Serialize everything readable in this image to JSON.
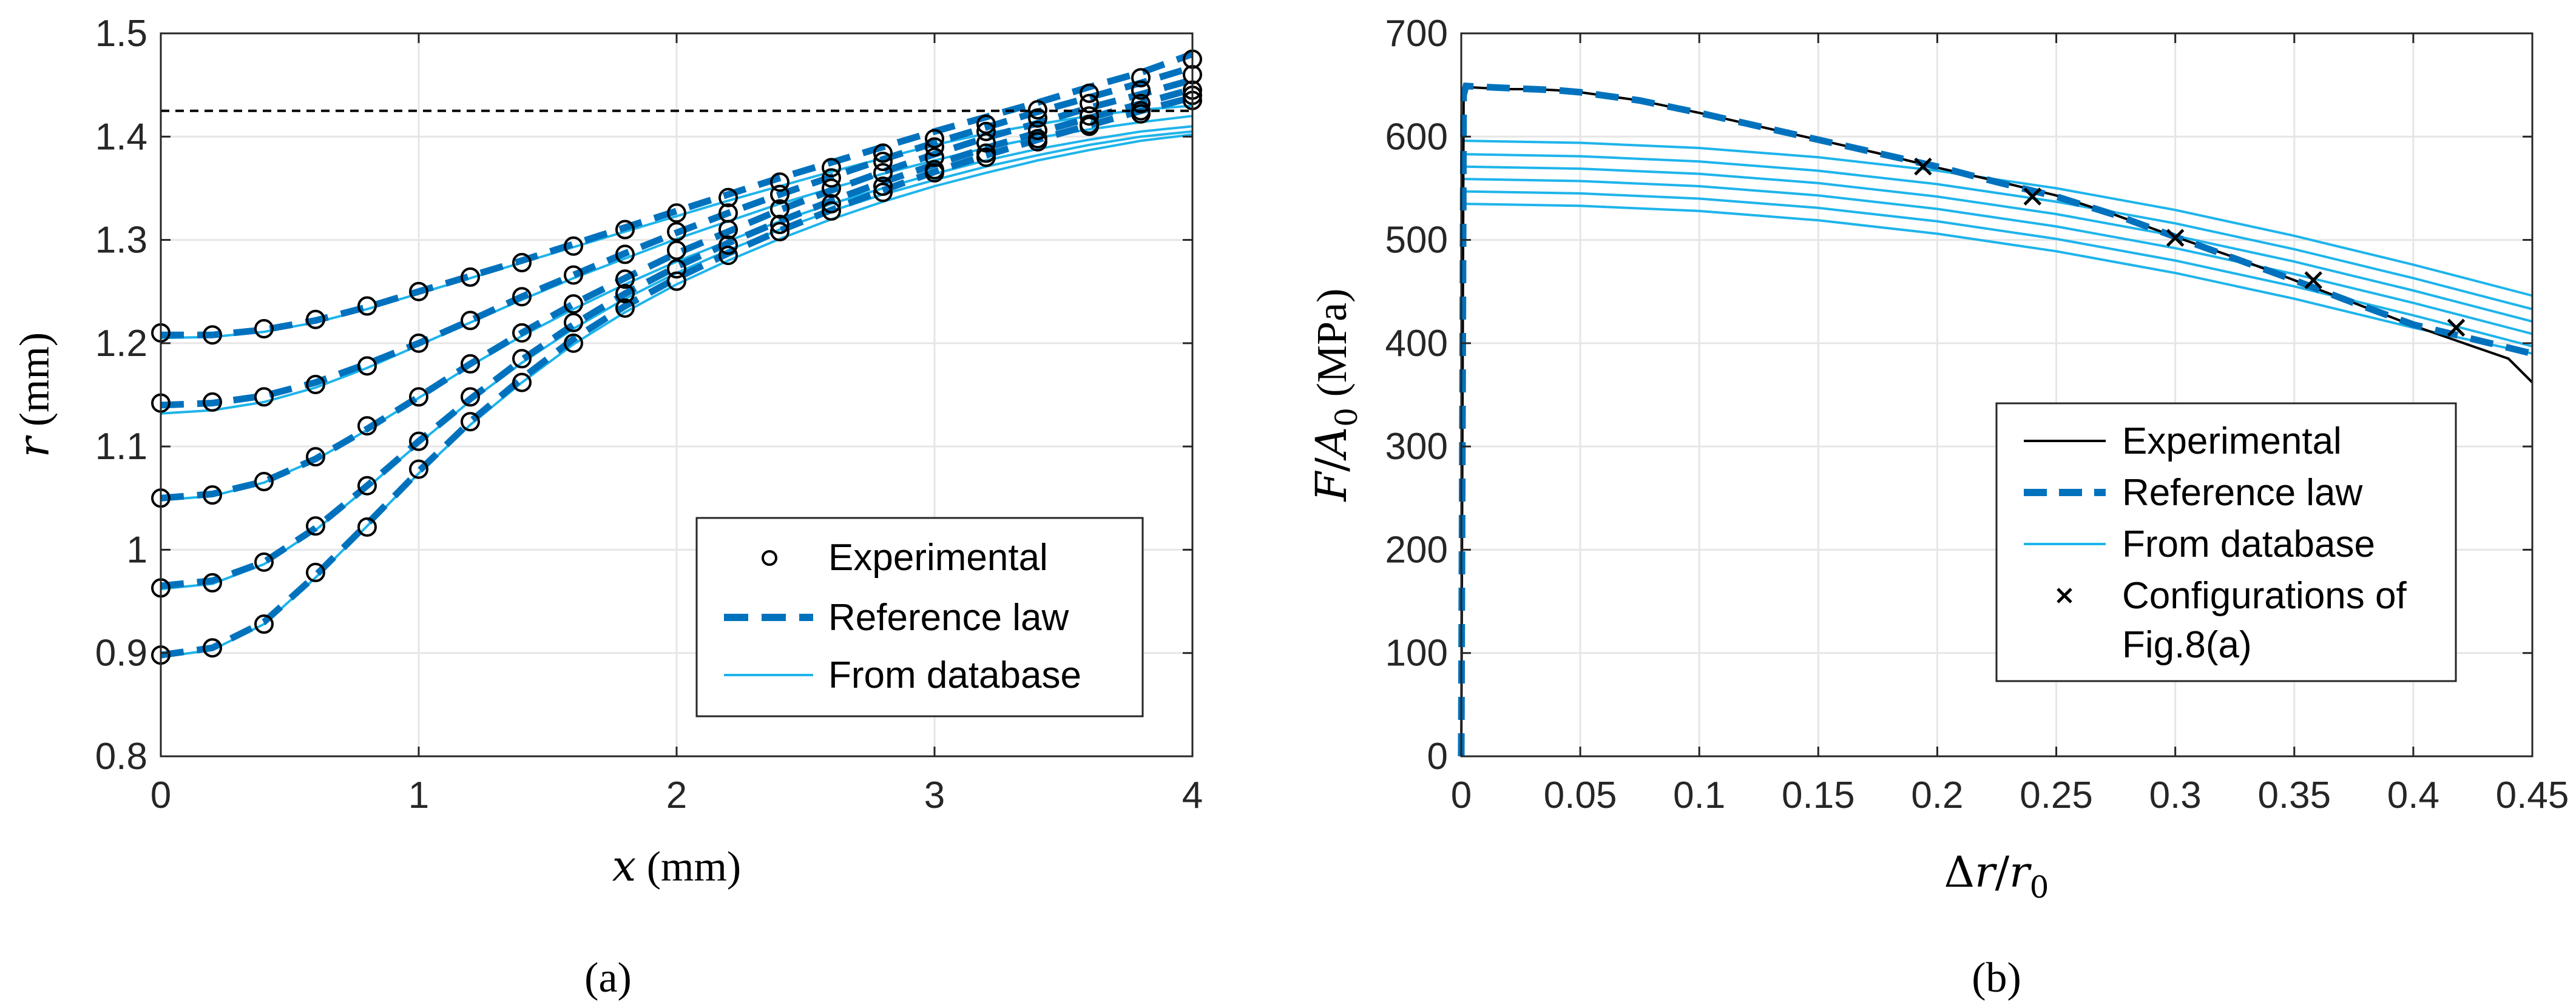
{
  "colors": {
    "experimental": "#000000",
    "reference": "#0072BD",
    "database": "#1EB4EB",
    "threshold": "#000000",
    "grid": "#E6E6E6"
  },
  "chart_data": [
    {
      "id": "a",
      "panel_label": "(a)",
      "type": "line",
      "xlabel": {
        "symbol": "x",
        "unit": " (mm)"
      },
      "ylabel": {
        "symbol": "r",
        "unit": " (mm)"
      },
      "xlim": [
        0,
        4
      ],
      "ylim": [
        0.8,
        1.5
      ],
      "xticks": [
        0,
        1,
        2,
        3,
        4
      ],
      "xtick_labels": [
        "0",
        "1",
        "2",
        "3",
        "4"
      ],
      "yticks": [
        0.8,
        0.9,
        1.0,
        1.1,
        1.2,
        1.3,
        1.4,
        1.5
      ],
      "ytick_labels": [
        "0.8",
        "0.9",
        "1",
        "1.1",
        "1.2",
        "1.3",
        "1.4",
        "1.5"
      ],
      "grid": true,
      "threshold_line": {
        "y": 1.425,
        "style": "dashed"
      },
      "legend": {
        "position": "lower-right",
        "entries": [
          {
            "label": "Experimental",
            "marker": "circle"
          },
          {
            "label": "Reference law",
            "style": "dashed"
          },
          {
            "label": "From database",
            "style": "solid"
          }
        ]
      },
      "x": [
        0,
        0.2,
        0.4,
        0.6,
        0.8,
        1.0,
        1.2,
        1.4,
        1.6,
        1.8,
        2.0,
        2.2,
        2.4,
        2.6,
        2.8,
        3.0,
        3.2,
        3.4,
        3.6,
        3.8,
        4.0
      ],
      "series": [
        {
          "name": "Experimental 1",
          "kind": "experimental",
          "values": [
            1.21,
            1.208,
            1.214,
            1.223,
            1.236,
            1.25,
            1.264,
            1.278,
            1.294,
            1.31,
            1.326,
            1.341,
            1.356,
            1.37,
            1.384,
            1.398,
            1.412,
            1.426,
            1.442,
            1.457,
            1.475
          ]
        },
        {
          "name": "Experimental 2",
          "kind": "experimental",
          "values": [
            1.142,
            1.143,
            1.148,
            1.16,
            1.178,
            1.2,
            1.222,
            1.245,
            1.266,
            1.286,
            1.308,
            1.326,
            1.344,
            1.36,
            1.376,
            1.39,
            1.405,
            1.418,
            1.432,
            1.445,
            1.46
          ]
        },
        {
          "name": "Experimental 3",
          "kind": "experimental",
          "values": [
            1.05,
            1.053,
            1.066,
            1.09,
            1.12,
            1.148,
            1.18,
            1.21,
            1.238,
            1.262,
            1.29,
            1.31,
            1.33,
            1.35,
            1.365,
            1.38,
            1.394,
            1.406,
            1.42,
            1.432,
            1.445
          ]
        },
        {
          "name": "Experimental 4",
          "kind": "experimental",
          "values": [
            0.963,
            0.968,
            0.988,
            1.023,
            1.062,
            1.105,
            1.148,
            1.185,
            1.22,
            1.248,
            1.272,
            1.295,
            1.315,
            1.335,
            1.352,
            1.368,
            1.384,
            1.398,
            1.412,
            1.425,
            1.44
          ]
        },
        {
          "name": "Experimental 5",
          "kind": "experimental",
          "values": [
            0.898,
            0.905,
            0.928,
            0.978,
            1.022,
            1.078,
            1.124,
            1.162,
            1.2,
            1.234,
            1.26,
            1.285,
            1.308,
            1.328,
            1.346,
            1.365,
            1.38,
            1.395,
            1.41,
            1.422,
            1.435
          ]
        },
        {
          "name": "Reference law",
          "kind": "reference",
          "curves": [
            [
              1.208,
              1.208,
              1.213,
              1.222,
              1.235,
              1.25,
              1.265,
              1.28,
              1.296,
              1.312,
              1.328,
              1.344,
              1.36,
              1.375,
              1.39,
              1.405,
              1.419,
              1.433,
              1.448,
              1.462,
              1.48
            ],
            [
              1.14,
              1.142,
              1.149,
              1.162,
              1.18,
              1.2,
              1.222,
              1.245,
              1.266,
              1.287,
              1.307,
              1.326,
              1.344,
              1.361,
              1.378,
              1.394,
              1.409,
              1.424,
              1.438,
              1.452,
              1.467
            ],
            [
              1.05,
              1.054,
              1.066,
              1.088,
              1.117,
              1.148,
              1.18,
              1.21,
              1.238,
              1.263,
              1.287,
              1.308,
              1.329,
              1.348,
              1.366,
              1.383,
              1.399,
              1.413,
              1.428,
              1.441,
              1.455
            ],
            [
              0.965,
              0.97,
              0.988,
              1.021,
              1.062,
              1.105,
              1.146,
              1.184,
              1.218,
              1.248,
              1.274,
              1.297,
              1.318,
              1.338,
              1.356,
              1.373,
              1.389,
              1.404,
              1.418,
              1.432,
              1.446
            ],
            [
              0.898,
              0.905,
              0.93,
              0.975,
              1.025,
              1.076,
              1.124,
              1.166,
              1.204,
              1.236,
              1.263,
              1.287,
              1.309,
              1.329,
              1.348,
              1.366,
              1.382,
              1.397,
              1.411,
              1.425,
              1.438
            ]
          ]
        },
        {
          "name": "From database",
          "kind": "database",
          "curves": [
            [
              1.205,
              1.206,
              1.211,
              1.22,
              1.233,
              1.248,
              1.263,
              1.278,
              1.293,
              1.308,
              1.323,
              1.338,
              1.352,
              1.366,
              1.379,
              1.392,
              1.403,
              1.412,
              1.42,
              1.426,
              1.43
            ],
            [
              1.132,
              1.135,
              1.143,
              1.157,
              1.176,
              1.198,
              1.22,
              1.242,
              1.263,
              1.282,
              1.301,
              1.318,
              1.335,
              1.35,
              1.364,
              1.377,
              1.389,
              1.399,
              1.407,
              1.414,
              1.42
            ],
            [
              1.048,
              1.052,
              1.065,
              1.087,
              1.116,
              1.147,
              1.178,
              1.207,
              1.233,
              1.257,
              1.279,
              1.299,
              1.318,
              1.335,
              1.35,
              1.364,
              1.377,
              1.388,
              1.397,
              1.405,
              1.41
            ],
            [
              0.962,
              0.967,
              0.986,
              1.019,
              1.06,
              1.103,
              1.144,
              1.181,
              1.214,
              1.243,
              1.268,
              1.29,
              1.31,
              1.328,
              1.344,
              1.358,
              1.371,
              1.382,
              1.392,
              1.4,
              1.405
            ],
            [
              0.896,
              0.903,
              0.928,
              0.973,
              1.023,
              1.074,
              1.121,
              1.162,
              1.199,
              1.23,
              1.257,
              1.28,
              1.301,
              1.32,
              1.337,
              1.352,
              1.365,
              1.377,
              1.387,
              1.396,
              1.402
            ]
          ]
        }
      ]
    },
    {
      "id": "b",
      "panel_label": "(b)",
      "type": "line",
      "xlabel": {
        "delta": "Δ",
        "sym": "r",
        "slash": "/",
        "sym0": "r",
        "sub": "0"
      },
      "ylabel": {
        "sym": "F",
        "slash": "/",
        "sym0": "A",
        "sub": "0",
        "unit": " (MPa)"
      },
      "xlim": [
        0,
        0.45
      ],
      "ylim": [
        0,
        700
      ],
      "xticks": [
        0,
        0.05,
        0.1,
        0.15,
        0.2,
        0.25,
        0.3,
        0.35,
        0.4,
        0.45
      ],
      "xtick_labels": [
        "0",
        "0.05",
        "0.1",
        "0.15",
        "0.2",
        "0.25",
        "0.3",
        "0.35",
        "0.4",
        "0.45"
      ],
      "yticks": [
        0,
        100,
        200,
        300,
        400,
        500,
        600,
        700
      ],
      "ytick_labels": [
        "0",
        "100",
        "200",
        "300",
        "400",
        "500",
        "600",
        "700"
      ],
      "grid": true,
      "legend": {
        "position": "center-right",
        "entries": [
          {
            "label": "Experimental",
            "style": "solid"
          },
          {
            "label": "Reference law",
            "style": "dashed"
          },
          {
            "label": "From database",
            "style": "solid"
          },
          {
            "label": "Configurations of",
            "label2": "Fig.8(a)",
            "marker": "x"
          }
        ]
      },
      "series": [
        {
          "name": "Experimental",
          "kind": "experimental",
          "x": [
            0,
            0.001,
            0.002,
            0.01,
            0.02,
            0.03,
            0.04,
            0.05,
            0.075,
            0.1,
            0.125,
            0.15,
            0.175,
            0.2,
            0.225,
            0.25,
            0.275,
            0.3,
            0.325,
            0.35,
            0.375,
            0.4,
            0.425,
            0.44,
            0.45
          ],
          "values": [
            0,
            640,
            648,
            647,
            646,
            646,
            645,
            643,
            635,
            623,
            610,
            597,
            584,
            570,
            557,
            543,
            524,
            503,
            483,
            461,
            439,
            417,
            397,
            385,
            362
          ]
        },
        {
          "name": "Reference law",
          "kind": "reference",
          "x": [
            0,
            0.001,
            0.002,
            0.01,
            0.02,
            0.03,
            0.04,
            0.05,
            0.075,
            0.1,
            0.125,
            0.15,
            0.175,
            0.2,
            0.225,
            0.25,
            0.275,
            0.3,
            0.325,
            0.35,
            0.375,
            0.4,
            0.425,
            0.45
          ],
          "values": [
            0,
            640,
            649,
            648,
            647,
            646,
            645,
            643,
            635,
            623,
            610,
            597,
            584,
            571,
            556,
            542,
            524,
            503,
            482,
            461,
            439,
            418,
            404,
            390
          ]
        },
        {
          "name": "From database",
          "kind": "database",
          "x": [
            0,
            0.05,
            0.1,
            0.15,
            0.2,
            0.25,
            0.3,
            0.35,
            0.4,
            0.45
          ],
          "curves": [
            [
              596,
              594,
              589,
              580,
              567,
              550,
              529,
              504,
              476,
              446
            ],
            [
              583,
              581,
              576,
              567,
              554,
              537,
              516,
              491,
              463,
              433
            ],
            [
              571,
              569,
              564,
              555,
              542,
              525,
              504,
              479,
              451,
              421
            ],
            [
              559,
              557,
              552,
              543,
              530,
              513,
              492,
              467,
              439,
              409
            ],
            [
              547,
              545,
              540,
              531,
              518,
              501,
              480,
              455,
              427,
              397
            ],
            [
              535,
              533,
              528,
              519,
              506,
              489,
              468,
              443,
              415,
              390
            ]
          ]
        },
        {
          "name": "Configurations of Fig.8(a)",
          "kind": "markers",
          "x": [
            0.194,
            0.24,
            0.3,
            0.358,
            0.418
          ],
          "values": [
            571,
            542,
            502,
            461,
            415
          ]
        }
      ]
    }
  ]
}
